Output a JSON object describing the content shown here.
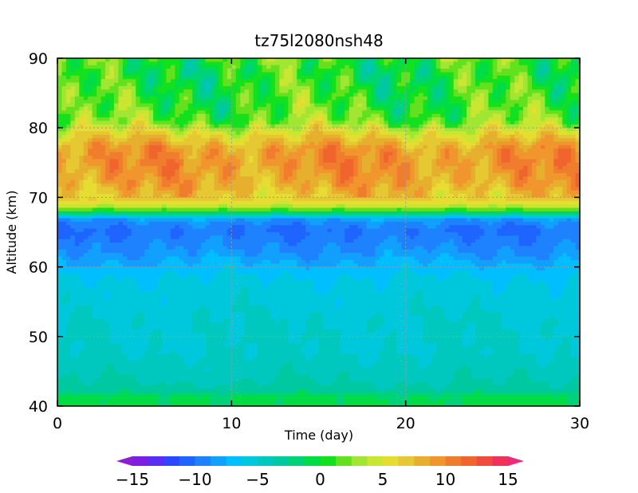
{
  "chart_data": {
    "type": "heatmap",
    "title": "tz75l2080nsh48",
    "xlabel": "Time (day)",
    "ylabel": "Altitude (km)",
    "xlim": [
      0,
      30
    ],
    "ylim": [
      40,
      90
    ],
    "x_ticks": [
      0,
      10,
      20,
      30
    ],
    "y_ticks": [
      40,
      50,
      60,
      70,
      80,
      90
    ],
    "grid": true,
    "colorbar": {
      "min": -15,
      "max": 15,
      "step": 1.5,
      "ticks": [
        -15,
        -10,
        -5,
        0,
        5,
        10,
        15
      ],
      "tick_labels": [
        "−15",
        "−10",
        "−5",
        "0",
        "5",
        "10",
        "15"
      ],
      "extend": "both",
      "colors": [
        "#8c1ed2",
        "#7d1ee1",
        "#5a2df0",
        "#2d46ff",
        "#1e64ff",
        "#1e82ff",
        "#12a0ff",
        "#00beff",
        "#00c8dc",
        "#00c8be",
        "#00c8a0",
        "#00d278",
        "#00dc46",
        "#14e11e",
        "#64e11e",
        "#a0e632",
        "#c8e632",
        "#e6dc32",
        "#e6c832",
        "#e6af2d",
        "#f0962d",
        "#f07d2d",
        "#f0642d",
        "#f04b3c",
        "#f0325a",
        "#f0287d"
      ]
    },
    "profile_altitudes_km": [
      40,
      41.5,
      42,
      44,
      46,
      48,
      52,
      55,
      58,
      60,
      62,
      64,
      65,
      66,
      67,
      67.5,
      68,
      68.5,
      69,
      70,
      72,
      75,
      77,
      79,
      80,
      81,
      83,
      86,
      88,
      90
    ],
    "profile_values": [
      -1,
      -1,
      -3,
      -4,
      -4.5,
      -5,
      -5,
      -5.5,
      -6,
      -7,
      -8.5,
      -9.5,
      -10,
      -9.5,
      -8,
      -4,
      0,
      3,
      5,
      7,
      8.5,
      9.5,
      9,
      6,
      4,
      2,
      1,
      0.5,
      0,
      1
    ]
  }
}
